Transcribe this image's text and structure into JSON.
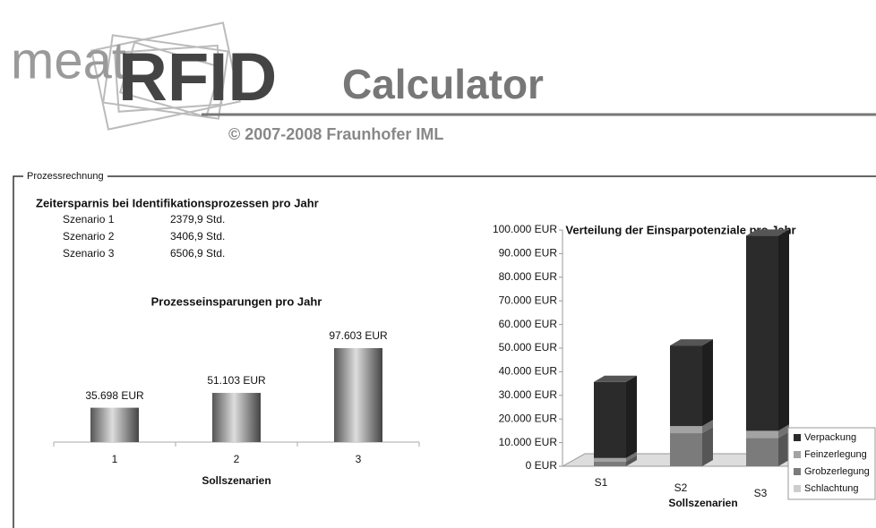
{
  "header": {
    "brand_prefix": "meat",
    "brand": "RFID",
    "product": "Calculator",
    "copyright": "© 2007-2008 Fraunhofer IML"
  },
  "section": {
    "legend": "Prozessrechnung",
    "time_title": "Zeitersparnis bei Identifikationsprozessen pro Jahr",
    "time_rows": [
      [
        "Szenario 1",
        "2379,9 Std."
      ],
      [
        "Szenario 2",
        "3406,9 Std."
      ],
      [
        "Szenario 3",
        "6506,9 Std."
      ]
    ]
  },
  "chart_data": [
    {
      "type": "bar",
      "title": "Prozesseinsparungen pro Jahr",
      "categories": [
        "1",
        "2",
        "3"
      ],
      "values": [
        35698,
        51103,
        97603
      ],
      "value_labels": [
        "35.698 EUR",
        "51.103 EUR",
        "97.603 EUR"
      ],
      "x_label": "Sollszenarien",
      "color": "#8a8a8a"
    },
    {
      "type": "stacked_bar_3d",
      "title": "Verteilung der Einsparpotenziale pro Jahr",
      "categories": [
        "S1",
        "S2",
        "S3"
      ],
      "x_label": "Sollszenarien",
      "series": [
        {
          "name": "Verpackung",
          "color": "#2b2b2b",
          "values": [
            32200,
            34100,
            82600
          ]
        },
        {
          "name": "Feinzerlegung",
          "color": "#a3a3a3",
          "values": [
            1500,
            3000,
            3000
          ]
        },
        {
          "name": "Grobzerlegung",
          "color": "#7b7b7b",
          "values": [
            2000,
            14000,
            12000
          ]
        },
        {
          "name": "Schlachtung",
          "color": "#cdcdcd",
          "values": [
            0,
            0,
            0
          ]
        }
      ],
      "ylim": [
        0,
        100000
      ],
      "yticks": [
        {
          "value": 0,
          "label": "0 EUR"
        },
        {
          "value": 10000,
          "label": "10.000 EUR"
        },
        {
          "value": 20000,
          "label": "20.000 EUR"
        },
        {
          "value": 30000,
          "label": "30.000 EUR"
        },
        {
          "value": 40000,
          "label": "40.000 EUR"
        },
        {
          "value": 50000,
          "label": "50.000 EUR"
        },
        {
          "value": 60000,
          "label": "60.000 EUR"
        },
        {
          "value": 70000,
          "label": "70.000 EUR"
        },
        {
          "value": 80000,
          "label": "80.000 EUR"
        },
        {
          "value": 90000,
          "label": "90.000 EUR"
        },
        {
          "value": 100000,
          "label": "100.000 EUR"
        }
      ]
    }
  ]
}
